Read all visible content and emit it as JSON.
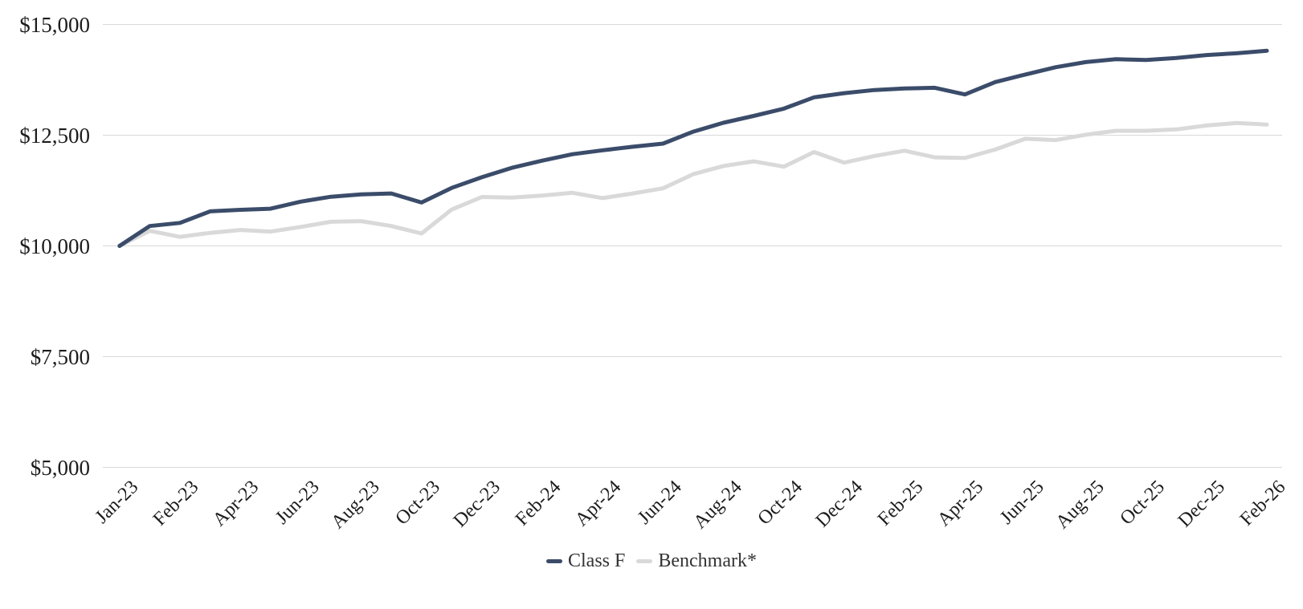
{
  "chart_data": {
    "type": "line",
    "title": "",
    "ylabel": "",
    "xlabel": "",
    "ylim": [
      5000,
      15000
    ],
    "grid": "horizontal-only",
    "grid_color": "#d9d9d9",
    "axis_text_color": "#1c1c1c",
    "legend_position": "bottom-center",
    "y_ticks": [
      {
        "label": "$15,000",
        "value": 15000
      },
      {
        "label": "$12,500",
        "value": 12500
      },
      {
        "label": "$10,000",
        "value": 10000
      },
      {
        "label": "$7,500",
        "value": 7500
      },
      {
        "label": "$5,000",
        "value": 5000
      }
    ],
    "x_ticks": [
      {
        "label": "Jan-23",
        "point_index": 0
      },
      {
        "label": "Feb-23",
        "point_index": 2
      },
      {
        "label": "Apr-23",
        "point_index": 4
      },
      {
        "label": "Jun-23",
        "point_index": 6
      },
      {
        "label": "Aug-23",
        "point_index": 8
      },
      {
        "label": "Oct-23",
        "point_index": 10
      },
      {
        "label": "Dec-23",
        "point_index": 12
      },
      {
        "label": "Feb-24",
        "point_index": 14
      },
      {
        "label": "Apr-24",
        "point_index": 16
      },
      {
        "label": "Jun-24",
        "point_index": 18
      },
      {
        "label": "Aug-24",
        "point_index": 20
      },
      {
        "label": "Oct-24",
        "point_index": 22
      },
      {
        "label": "Dec-24",
        "point_index": 24
      },
      {
        "label": "Feb-25",
        "point_index": 26
      },
      {
        "label": "Apr-25",
        "point_index": 28
      },
      {
        "label": "Jun-25",
        "point_index": 30
      },
      {
        "label": "Aug-25",
        "point_index": 32
      },
      {
        "label": "Oct-25",
        "point_index": 34
      },
      {
        "label": "Dec-25",
        "point_index": 36
      },
      {
        "label": "Feb-26",
        "point_index": 38
      }
    ],
    "months": [
      "Jan-23",
      "Jan-23",
      "Feb-23",
      "Mar-23",
      "Apr-23",
      "May-23",
      "Jun-23",
      "Jul-23",
      "Aug-23",
      "Sep-23",
      "Oct-23",
      "Nov-23",
      "Dec-23",
      "Jan-24",
      "Feb-24",
      "Mar-24",
      "Apr-24",
      "May-24",
      "Jun-24",
      "Jul-24",
      "Aug-24",
      "Sep-24",
      "Oct-24",
      "Nov-24",
      "Dec-24",
      "Jan-25",
      "Feb-25",
      "Mar-25",
      "Apr-25",
      "May-25",
      "Jun-25",
      "Jul-25",
      "Aug-25",
      "Sep-25",
      "Oct-25",
      "Nov-25",
      "Dec-25",
      "Jan-26",
      "Feb-26"
    ],
    "series": [
      {
        "name": "Class F",
        "color": "#3b4c6a",
        "values": [
          10000,
          10450,
          10520,
          10780,
          10815,
          10840,
          11000,
          11110,
          11165,
          11185,
          10980,
          11310,
          11550,
          11765,
          11925,
          12070,
          12160,
          12240,
          12310,
          12580,
          12780,
          12935,
          13100,
          13355,
          13450,
          13520,
          13555,
          13570,
          13420,
          13700,
          13870,
          14035,
          14150,
          14215,
          14200,
          14245,
          14310,
          14350,
          14405
        ]
      },
      {
        "name": "Benchmark*",
        "color": "#d9d9d9",
        "values": [
          10000,
          10340,
          10205,
          10295,
          10360,
          10325,
          10430,
          10545,
          10560,
          10450,
          10280,
          10820,
          11105,
          11090,
          11135,
          11200,
          11080,
          11185,
          11300,
          11620,
          11805,
          11910,
          11790,
          12120,
          11880,
          12030,
          12150,
          12000,
          11985,
          12175,
          12420,
          12390,
          12510,
          12600,
          12600,
          12630,
          12720,
          12775,
          12740
        ]
      }
    ]
  },
  "legend": {
    "class_f_label": "Class F",
    "benchmark_label": "Benchmark*"
  }
}
